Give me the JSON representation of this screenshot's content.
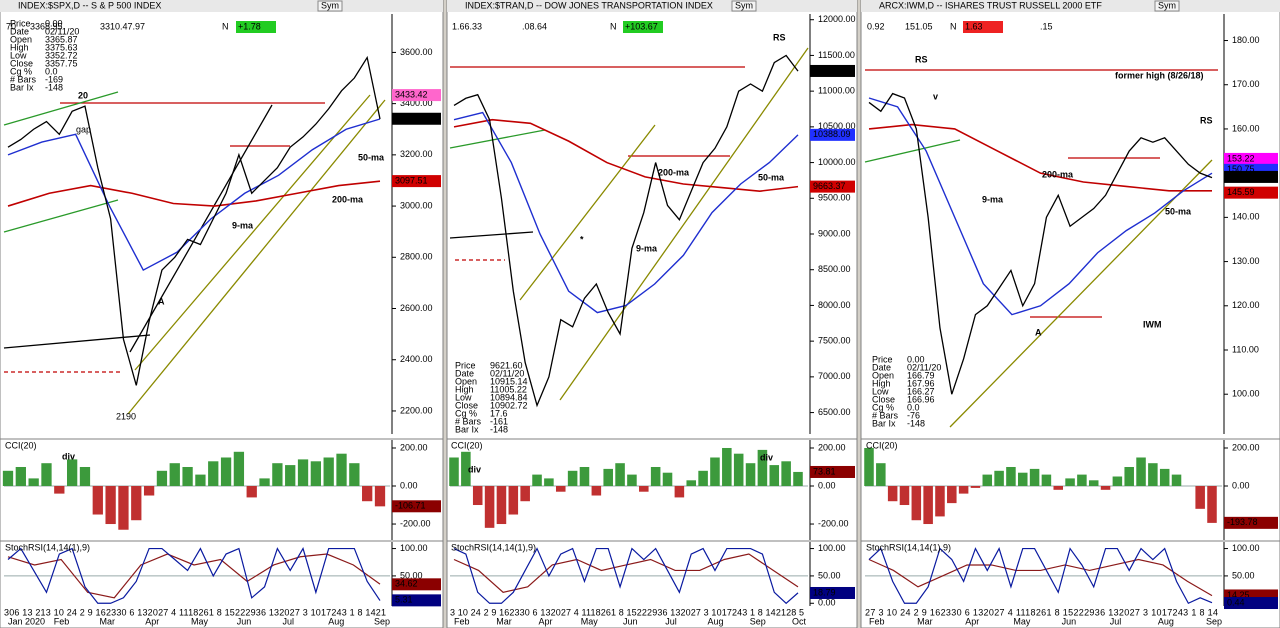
{
  "panels": [
    {
      "title": "INDEX:$SPX,D -- S & P 500 INDEX",
      "sym": "Sym",
      "readouts": [
        "70",
        "3368.95",
        "3310.47.97",
        "N",
        "+1.78"
      ],
      "price": {
        "ylim": [
          2110,
          3750
        ],
        "yticks": [
          {
            "value": 3600,
            "label": "3600.00"
          },
          {
            "value": 3400,
            "label": "3400.00"
          },
          {
            "value": 3200,
            "label": "3200.00"
          },
          {
            "value": 3000,
            "label": "3000.00"
          },
          {
            "value": 2800,
            "label": "2800.00"
          },
          {
            "value": 2600,
            "label": "2600.00"
          },
          {
            "value": 2400,
            "label": "2400.00"
          },
          {
            "value": 2200,
            "label": "2200.00"
          }
        ],
        "close": [
          3230,
          3260,
          3300,
          3330,
          3280,
          3370,
          3390,
          3150,
          2950,
          2480,
          2300,
          2550,
          2750,
          2800,
          2870,
          2850,
          2950,
          3050,
          3200,
          3050,
          3100,
          3150,
          3230,
          3270,
          3320,
          3380,
          3450,
          3500,
          3580,
          3340
        ],
        "ma50": [
          3200,
          3250,
          3280,
          3000,
          2750,
          2820,
          2950,
          3050,
          3120,
          3220,
          3300,
          3340
        ],
        "ma200": [
          3000,
          3050,
          3080,
          3050,
          3010,
          3000,
          3020,
          3050,
          3080,
          3097
        ],
        "last": [
          {
            "value": 3433.42,
            "color": "#ff66cc"
          },
          {
            "value": 3340.97,
            "color": "#000000"
          },
          {
            "value": 3097.51,
            "color": "#d00000"
          }
        ],
        "info": [
          [
            "Price",
            "0.00"
          ],
          [
            "Date",
            "02/11/20"
          ],
          [
            "Open",
            "3365.87"
          ],
          [
            "High",
            "3375.63"
          ],
          [
            "Low",
            "3352.72"
          ],
          [
            "Close",
            "3357.75"
          ],
          [
            "Cg %",
            "0.0"
          ],
          [
            "# Bars",
            "-169"
          ],
          [
            "Bar Ix",
            "-148"
          ]
        ],
        "annotations": [
          "20",
          "gap",
          "A",
          "2190",
          "50-ma",
          "200-ma",
          "9-ma"
        ]
      },
      "cci": {
        "title": "CCI(20)",
        "ylim": [
          -284,
          242
        ],
        "yticks": [
          {
            "value": 200,
            "label": "200.00"
          },
          {
            "value": 0,
            "label": "0.00"
          },
          {
            "value": -200,
            "label": "-200.00"
          }
        ],
        "values": [
          80,
          100,
          40,
          120,
          -40,
          140,
          100,
          -150,
          -200,
          -230,
          -180,
          -50,
          80,
          120,
          100,
          60,
          130,
          150,
          180,
          -60,
          40,
          120,
          110,
          140,
          130,
          150,
          170,
          120,
          -80,
          -107
        ],
        "last": [
          {
            "value": -106.71,
            "color": "#8b0000"
          }
        ],
        "annotations": [
          "div"
        ]
      },
      "stoch": {
        "title": "StochRSI(14,14(1),9)",
        "ylim": [
          -5,
          112
        ],
        "yticks": [
          {
            "value": 100,
            "label": "100.00"
          },
          {
            "value": 50,
            "label": "50.00"
          },
          {
            "value": 0,
            "label": "0.00"
          }
        ],
        "k": [
          80,
          100,
          60,
          20,
          90,
          100,
          30,
          0,
          0,
          10,
          40,
          100,
          100,
          80,
          60,
          100,
          50,
          90,
          100,
          10,
          30,
          100,
          60,
          100,
          20,
          100,
          100,
          100,
          40,
          5
        ],
        "d": [
          85,
          70,
          80,
          20,
          10,
          70,
          90,
          70,
          80,
          40,
          70,
          85,
          90,
          70,
          35
        ],
        "last": [
          {
            "value": 34.62,
            "color": "#8b0000"
          },
          {
            "value": 5.31,
            "color": "#000080"
          }
        ]
      },
      "xaxis": {
        "days": "306 13 213 10 24 2 9 162330 6 132027 4 1118261 8 15222936 132027 3 1017243 1 8 1421",
        "months": [
          "Jan 2020",
          "Feb",
          "Mar",
          "Apr",
          "May",
          "Jun",
          "Jul",
          "Aug",
          "Sep"
        ]
      }
    },
    {
      "title": "INDEX:$TRAN,D -- DOW JONES TRANSPORTATION INDEX",
      "sym": "Sym",
      "readouts": [
        "1.66.33",
        ".08.64",
        "N",
        "+103.67"
      ],
      "price": {
        "ylim": [
          6200,
          12080
        ],
        "yticks": [
          {
            "value": 12000,
            "label": "12000.00"
          },
          {
            "value": 11500,
            "label": "11500.00"
          },
          {
            "value": 11000,
            "label": "11000.00"
          },
          {
            "value": 10500,
            "label": "10500.00"
          },
          {
            "value": 10000,
            "label": "10000.00"
          },
          {
            "value": 9500,
            "label": "9500.00"
          },
          {
            "value": 9000,
            "label": "9000.00"
          },
          {
            "value": 8500,
            "label": "8500.00"
          },
          {
            "value": 8000,
            "label": "8000.00"
          },
          {
            "value": 7500,
            "label": "7500.00"
          },
          {
            "value": 7000,
            "label": "7000.00"
          },
          {
            "value": 6500,
            "label": "6500.00"
          }
        ],
        "close": [
          10800,
          10900,
          10950,
          10600,
          9500,
          8200,
          7200,
          6600,
          7000,
          7800,
          7700,
          8100,
          8300,
          7900,
          7600,
          8800,
          9300,
          10000,
          9400,
          9200,
          9600,
          10000,
          10200,
          10500,
          11000,
          11100,
          11000,
          11400,
          11500,
          11280
        ],
        "ma50": [
          10600,
          10700,
          10000,
          9000,
          8200,
          7900,
          8000,
          8300,
          8700,
          9300,
          9700,
          10000,
          10388
        ],
        "ma200": [
          10500,
          10600,
          10550,
          10300,
          10000,
          9800,
          9700,
          9650,
          9600,
          9663
        ],
        "last": [
          {
            "value": 11282.64,
            "color": "#000000"
          },
          {
            "value": 10388.09,
            "color": "#2030ff"
          },
          {
            "value": 9663.37,
            "color": "#d00000"
          }
        ],
        "info": [
          [
            "Price",
            "9621.60"
          ],
          [
            "Date",
            "02/11/20"
          ],
          [
            "Open",
            "10915.14"
          ],
          [
            "High",
            "11005.22"
          ],
          [
            "Low",
            "10894.84"
          ],
          [
            "Close",
            "10902.72"
          ],
          [
            "Cg %",
            "17.6"
          ],
          [
            "# Bars",
            "-161"
          ],
          [
            "Bar Ix",
            "-148"
          ]
        ],
        "annotations": [
          "RS",
          "200-ma",
          "50-ma",
          "9-ma",
          "*"
        ]
      },
      "cci": {
        "title": "CCI(20)",
        "ylim": [
          -284,
          242
        ],
        "yticks": [
          {
            "value": 200,
            "label": "200.00"
          },
          {
            "value": 0,
            "label": "0.00"
          },
          {
            "value": -200,
            "label": "-200.00"
          }
        ],
        "values": [
          150,
          180,
          -100,
          -220,
          -200,
          -150,
          -80,
          60,
          40,
          -30,
          80,
          100,
          -50,
          90,
          120,
          60,
          -30,
          100,
          70,
          -60,
          30,
          80,
          150,
          200,
          170,
          120,
          190,
          110,
          130,
          74
        ],
        "last": [
          {
            "value": 73.81,
            "color": "#8b0000"
          }
        ],
        "annotations": [
          "div",
          "div"
        ]
      },
      "stoch": {
        "title": "StochRSI(14,14(1),9)",
        "ylim": [
          -5,
          112
        ],
        "yticks": [
          {
            "value": 100,
            "label": "100.00"
          },
          {
            "value": 50,
            "label": "50.00"
          },
          {
            "value": 0,
            "label": "0.00"
          }
        ],
        "k": [
          100,
          90,
          20,
          0,
          0,
          20,
          60,
          100,
          50,
          90,
          100,
          40,
          100,
          100,
          30,
          100,
          80,
          100,
          60,
          20,
          90,
          100,
          60,
          100,
          100,
          100,
          90,
          20,
          0,
          19
        ],
        "d": [
          80,
          60,
          20,
          30,
          70,
          80,
          60,
          70,
          80,
          60,
          60,
          80,
          90,
          60,
          30
        ],
        "last": [
          {
            "value": 18.79,
            "color": "#000080"
          }
        ]
      },
      "xaxis": {
        "days": "3 10   24 2 9 162330 6 132027 4 1118261 8 15222936 132027 3 1017243 1 8 142128 5",
        "months": [
          "Feb",
          "Mar",
          "Apr",
          "May",
          "Jun",
          "Jul",
          "Aug",
          "Sep",
          "Oct"
        ]
      }
    },
    {
      "title": "ARCX:IWM,D -- ISHARES TRUST RUSSELL 2000 ETF",
      "sym": "Sym",
      "readouts": [
        "0.92",
        "151.05",
        "N",
        "1.63",
        ".15"
      ],
      "price": {
        "ylim": [
          91,
          186
        ],
        "yticks": [
          {
            "value": 180,
            "label": "180.00"
          },
          {
            "value": 170,
            "label": "170.00"
          },
          {
            "value": 160,
            "label": "160.00"
          },
          {
            "value": 150,
            "label": "150.00"
          },
          {
            "value": 140,
            "label": "140.00"
          },
          {
            "value": 130,
            "label": "130.00"
          },
          {
            "value": 120,
            "label": "120.00"
          },
          {
            "value": 110,
            "label": "110.00"
          },
          {
            "value": 100,
            "label": "100.00"
          }
        ],
        "close": [
          166,
          164,
          168,
          167,
          160,
          140,
          115,
          100,
          108,
          118,
          120,
          124,
          128,
          120,
          125,
          140,
          145,
          138,
          140,
          142,
          145,
          150,
          155,
          158,
          157,
          158,
          155,
          152,
          150,
          149
        ],
        "ma50": [
          167,
          165,
          155,
          140,
          125,
          118,
          120,
          125,
          132,
          137,
          141,
          146,
          150
        ],
        "ma200": [
          160,
          161,
          160,
          155,
          150,
          148,
          147,
          146,
          146
        ],
        "last": [
          {
            "value": 153.22,
            "color": "#ff00ff"
          },
          {
            "value": 150.75,
            "color": "#2030ff"
          },
          {
            "value": 149.15,
            "color": "#000000"
          },
          {
            "value": 145.59,
            "color": "#d00000"
          }
        ],
        "info": [
          [
            "Price",
            "0.00"
          ],
          [
            "Date",
            "02/11/20"
          ],
          [
            "Open",
            "166.79"
          ],
          [
            "High",
            "167.96"
          ],
          [
            "Low",
            "166.27"
          ],
          [
            "Close",
            "166.96"
          ],
          [
            "Cg %",
            "0.0"
          ],
          [
            "# Bars",
            "-76"
          ],
          [
            "Bar Ix",
            "-148"
          ]
        ],
        "annotations": [
          "RS",
          "former high (8/26/18)",
          "v",
          "200-ma",
          "9-ma",
          "50-ma",
          "A",
          "RS",
          "IWM"
        ]
      },
      "cci": {
        "title": "CCI(20)",
        "ylim": [
          -284,
          242
        ],
        "yticks": [
          {
            "value": 200,
            "label": "200.00"
          },
          {
            "value": 0,
            "label": "0.00"
          },
          {
            "value": -200,
            "label": "-200.00"
          }
        ],
        "values": [
          200,
          120,
          -80,
          -100,
          -180,
          -200,
          -160,
          -90,
          -40,
          -10,
          60,
          80,
          100,
          70,
          90,
          60,
          -20,
          40,
          60,
          30,
          -20,
          50,
          100,
          150,
          120,
          90,
          60,
          0,
          -120,
          -194
        ],
        "last": [
          {
            "value": -193.78,
            "color": "#8b0000"
          }
        ],
        "annotations": []
      },
      "stoch": {
        "title": "StochRSI(14,14(1),9)",
        "ylim": [
          -5,
          112
        ],
        "yticks": [
          {
            "value": 100,
            "label": "100.00"
          },
          {
            "value": 50,
            "label": "50.00"
          },
          {
            "value": 0,
            "label": "0.00"
          }
        ],
        "k": [
          80,
          100,
          40,
          0,
          0,
          30,
          100,
          80,
          40,
          100,
          60,
          100,
          30,
          100,
          100,
          60,
          20,
          100,
          70,
          30,
          100,
          100,
          60,
          100,
          80,
          100,
          40,
          0,
          10,
          1
        ],
        "d": [
          80,
          60,
          30,
          50,
          70,
          70,
          60,
          60,
          70,
          60,
          70,
          80,
          70,
          40,
          14
        ],
        "last": [
          {
            "value": 14.25,
            "color": "#8b0000"
          },
          {
            "value": 0.44,
            "color": "#000080"
          }
        ]
      },
      "xaxis": {
        "days": "27 3 10  24 2 9 162330 6 132027 4 1118261 8 15222936 132027 3 1017243 1 8 14",
        "months": [
          "Feb",
          "Mar",
          "Apr",
          "May",
          "Jun",
          "Jul",
          "Aug",
          "Sep"
        ]
      }
    }
  ]
}
